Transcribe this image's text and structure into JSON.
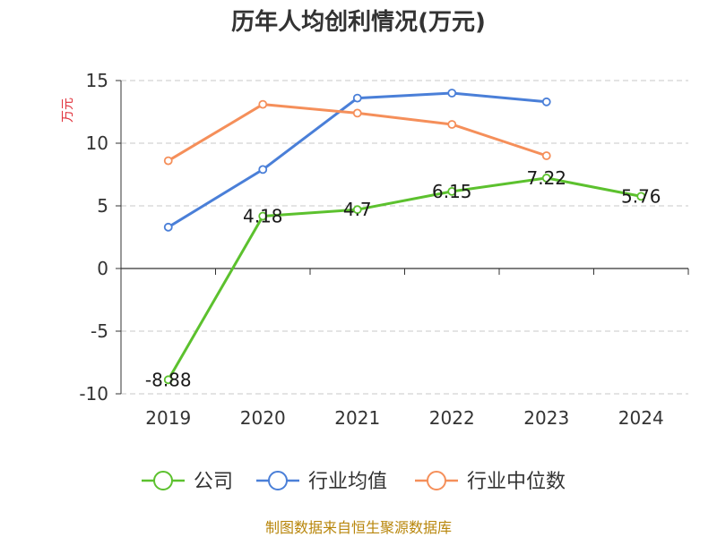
{
  "chart_data": {
    "type": "line",
    "title": "历年人均创利情况(万元)",
    "ylabel": "万元",
    "categories": [
      "2019",
      "2020",
      "2021",
      "2022",
      "2023",
      "2024"
    ],
    "ylim": [
      -10,
      15
    ],
    "yticks": [
      15,
      10,
      5,
      0,
      -5,
      -10
    ],
    "grid": true,
    "legend_position": "bottom",
    "series": [
      {
        "name": "公司",
        "color": "#5cc12e",
        "values": [
          -8.88,
          4.18,
          4.7,
          6.15,
          7.22,
          5.76
        ],
        "labels": [
          "-8.88",
          "4.18",
          "4.7",
          "6.15",
          "7.22",
          "5.76"
        ]
      },
      {
        "name": "行业均值",
        "color": "#4a7fd8",
        "values": [
          3.3,
          7.9,
          13.6,
          14.0,
          13.3,
          null
        ]
      },
      {
        "name": "行业中位数",
        "color": "#f58f5a",
        "values": [
          8.6,
          13.1,
          12.4,
          11.5,
          9.0,
          null
        ]
      }
    ]
  },
  "source_text": "制图数据来自恒生聚源数据库"
}
